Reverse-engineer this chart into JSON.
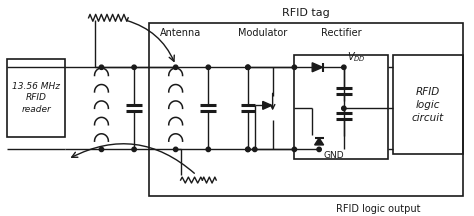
{
  "title": "RFID tag",
  "bg_color": "#ffffff",
  "line_color": "#1a1a1a",
  "figsize": [
    4.74,
    2.16
  ],
  "dpi": 100,
  "labels": {
    "rfid_reader": "13.56 MHz\nRFID\nreader",
    "antenna": "Antenna",
    "modulator": "Modulator",
    "rectifier": "Rectifier",
    "rfid_logic": "RFID\nlogic\ncircuit",
    "rfid_tag": "RFID tag",
    "vdd": "$V_{DD}$",
    "gnd": "GND",
    "rfid_logic_output": "RFID logic output"
  }
}
